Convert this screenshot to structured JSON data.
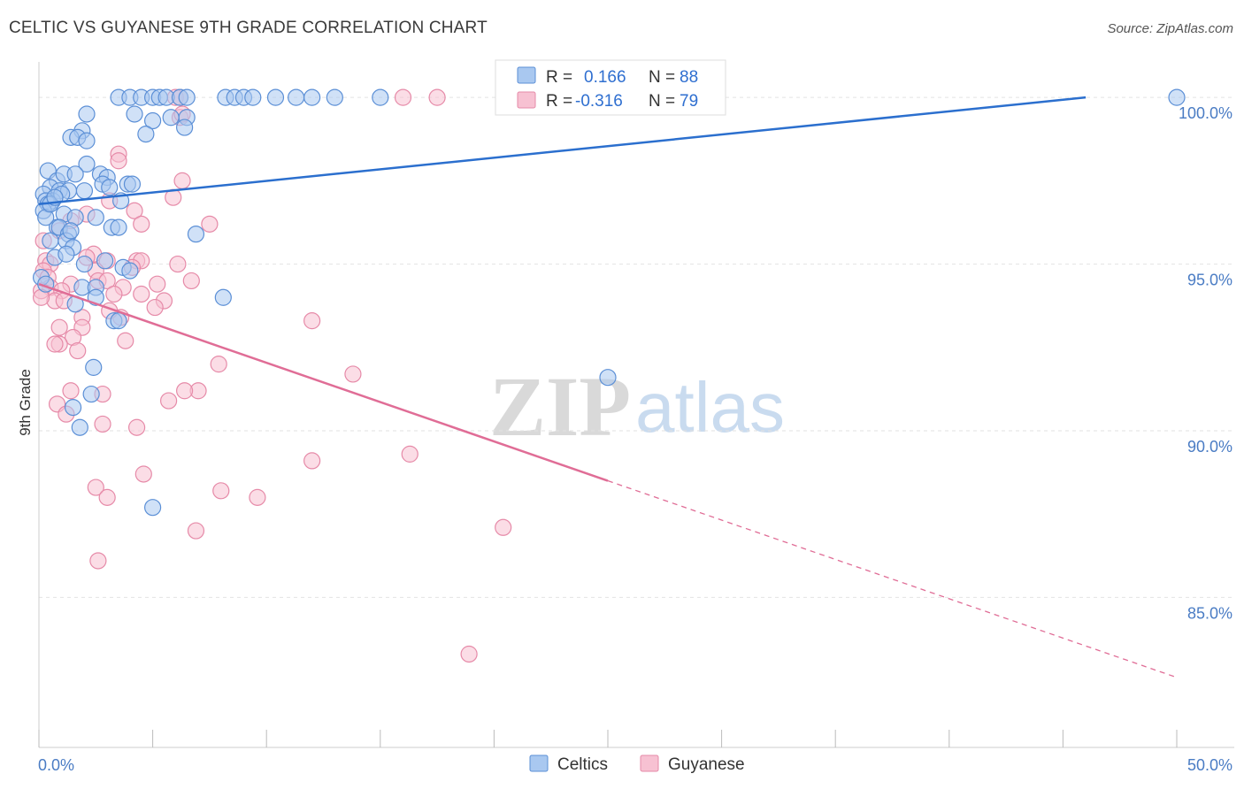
{
  "title": "CELTIC VS GUYANESE 9TH GRADE CORRELATION CHART",
  "source": "Source: ZipAtlas.com",
  "watermark": {
    "zip": "ZIP",
    "atlas": "atlas"
  },
  "legend": {
    "celtic": {
      "r_label": "R =",
      "r_value": "0.166",
      "n_label": "N =",
      "n_value": "88"
    },
    "guyanese": {
      "r_label": "R =",
      "r_value": "-0.316",
      "n_label": "N =",
      "n_value": "79"
    }
  },
  "colors": {
    "celtic_fill": "#a9c8f0",
    "celtic_stroke": "#5b8fd6",
    "celtic_line": "#2b6fce",
    "guyanese_fill": "#f7c1d2",
    "guyanese_stroke": "#e68aa8",
    "guyanese_line": "#e06d96",
    "grid": "#e2e2e2",
    "tick_text": "#4a7cc4"
  },
  "chart_data": {
    "type": "scatter",
    "title": "CELTIC VS GUYANESE 9TH GRADE CORRELATION CHART",
    "xlabel": "",
    "ylabel": "9th Grade",
    "xlim": [
      0,
      50
    ],
    "ylim": [
      80.5,
      100.8
    ],
    "x_tick_labels": [
      "0.0%",
      "50.0%"
    ],
    "y_ticks": [
      85,
      90,
      95,
      100
    ],
    "y_tick_labels": [
      "85.0%",
      "90.0%",
      "95.0%",
      "100.0%"
    ],
    "series": [
      {
        "name": "Celtics",
        "r": 0.166,
        "n": 88,
        "trend": {
          "x": [
            0,
            46
          ],
          "y": [
            96.8,
            100.0
          ],
          "dashed_to_x": null
        },
        "points": [
          [
            3.5,
            100
          ],
          [
            4.0,
            100
          ],
          [
            4.5,
            100
          ],
          [
            5.0,
            100
          ],
          [
            5.3,
            100
          ],
          [
            5.6,
            100
          ],
          [
            6.2,
            100
          ],
          [
            6.5,
            100
          ],
          [
            8.2,
            100
          ],
          [
            8.6,
            100
          ],
          [
            9.0,
            100
          ],
          [
            9.4,
            100
          ],
          [
            10.4,
            100
          ],
          [
            11.3,
            100
          ],
          [
            12.0,
            100
          ],
          [
            13.0,
            100
          ],
          [
            15.0,
            100
          ],
          [
            50.0,
            100
          ],
          [
            2.1,
            99.5
          ],
          [
            4.2,
            99.5
          ],
          [
            5.8,
            99.4
          ],
          [
            6.5,
            99.4
          ],
          [
            6.4,
            99.1
          ],
          [
            5.0,
            99.3
          ],
          [
            1.9,
            99.0
          ],
          [
            1.4,
            98.8
          ],
          [
            1.7,
            98.8
          ],
          [
            2.1,
            98.7
          ],
          [
            2.1,
            98.0
          ],
          [
            0.4,
            97.8
          ],
          [
            0.8,
            97.5
          ],
          [
            1.1,
            97.7
          ],
          [
            1.6,
            97.7
          ],
          [
            2.7,
            97.7
          ],
          [
            3.0,
            97.6
          ],
          [
            2.8,
            97.4
          ],
          [
            3.1,
            97.3
          ],
          [
            3.9,
            97.4
          ],
          [
            4.1,
            97.4
          ],
          [
            0.5,
            97.3
          ],
          [
            2.0,
            97.2
          ],
          [
            0.2,
            97.1
          ],
          [
            0.9,
            97.2
          ],
          [
            1.3,
            97.2
          ],
          [
            0.6,
            96.9
          ],
          [
            0.3,
            96.9
          ],
          [
            0.4,
            96.8
          ],
          [
            0.2,
            96.6
          ],
          [
            1.1,
            96.5
          ],
          [
            2.5,
            96.4
          ],
          [
            1.6,
            96.4
          ],
          [
            0.8,
            96.1
          ],
          [
            0.9,
            96.1
          ],
          [
            3.2,
            96.1
          ],
          [
            3.5,
            96.1
          ],
          [
            6.9,
            95.9
          ],
          [
            1.3,
            95.9
          ],
          [
            1.2,
            95.7
          ],
          [
            0.5,
            95.7
          ],
          [
            1.5,
            95.5
          ],
          [
            0.7,
            95.2
          ],
          [
            1.2,
            95.3
          ],
          [
            2.0,
            95.0
          ],
          [
            3.7,
            94.9
          ],
          [
            4.0,
            94.8
          ],
          [
            0.1,
            94.6
          ],
          [
            0.3,
            94.4
          ],
          [
            1.9,
            94.3
          ],
          [
            2.5,
            94.3
          ],
          [
            8.1,
            94.0
          ],
          [
            2.5,
            94.0
          ],
          [
            1.6,
            93.8
          ],
          [
            3.3,
            93.3
          ],
          [
            3.5,
            93.3
          ],
          [
            2.4,
            91.9
          ],
          [
            2.3,
            91.1
          ],
          [
            1.5,
            90.7
          ],
          [
            1.8,
            90.1
          ],
          [
            25.0,
            91.6
          ],
          [
            5.0,
            87.7
          ],
          [
            0.3,
            96.4
          ],
          [
            0.5,
            96.8
          ],
          [
            1.0,
            97.1
          ],
          [
            3.6,
            96.9
          ],
          [
            2.9,
            95.1
          ],
          [
            1.4,
            96.0
          ],
          [
            0.7,
            97.0
          ],
          [
            4.7,
            98.9
          ]
        ]
      },
      {
        "name": "Guyanese",
        "r": -0.316,
        "n": 79,
        "trend": {
          "x": [
            0,
            25.0
          ],
          "y": [
            94.4,
            88.5
          ],
          "dashed_to_x": 50
        },
        "points": [
          [
            6.0,
            100
          ],
          [
            6.2,
            100
          ],
          [
            16.0,
            100
          ],
          [
            17.5,
            100
          ],
          [
            6.2,
            99.4
          ],
          [
            6.3,
            99.5
          ],
          [
            3.5,
            98.3
          ],
          [
            3.5,
            98.1
          ],
          [
            6.3,
            97.5
          ],
          [
            5.9,
            97.0
          ],
          [
            3.1,
            96.9
          ],
          [
            4.2,
            96.6
          ],
          [
            2.1,
            96.5
          ],
          [
            1.4,
            96.3
          ],
          [
            7.5,
            96.2
          ],
          [
            4.5,
            96.2
          ],
          [
            0.9,
            96.0
          ],
          [
            0.2,
            95.7
          ],
          [
            2.4,
            95.3
          ],
          [
            2.1,
            95.2
          ],
          [
            3.0,
            95.1
          ],
          [
            4.3,
            95.1
          ],
          [
            4.5,
            95.1
          ],
          [
            0.3,
            95.1
          ],
          [
            0.5,
            95.0
          ],
          [
            6.1,
            95.0
          ],
          [
            0.2,
            94.8
          ],
          [
            2.5,
            94.8
          ],
          [
            4.1,
            94.9
          ],
          [
            0.4,
            94.6
          ],
          [
            2.6,
            94.5
          ],
          [
            3.0,
            94.5
          ],
          [
            1.4,
            94.4
          ],
          [
            6.7,
            94.5
          ],
          [
            5.2,
            94.4
          ],
          [
            0.5,
            94.3
          ],
          [
            3.7,
            94.3
          ],
          [
            4.5,
            94.1
          ],
          [
            0.1,
            94.2
          ],
          [
            1.0,
            94.2
          ],
          [
            3.3,
            94.1
          ],
          [
            0.7,
            93.9
          ],
          [
            5.5,
            93.9
          ],
          [
            5.1,
            93.7
          ],
          [
            3.6,
            93.4
          ],
          [
            1.9,
            93.4
          ],
          [
            12.0,
            93.3
          ],
          [
            1.9,
            93.1
          ],
          [
            0.9,
            93.1
          ],
          [
            1.5,
            92.8
          ],
          [
            3.8,
            92.7
          ],
          [
            0.9,
            92.6
          ],
          [
            0.7,
            92.6
          ],
          [
            1.7,
            92.4
          ],
          [
            7.9,
            92.0
          ],
          [
            13.8,
            91.7
          ],
          [
            7.0,
            91.2
          ],
          [
            1.4,
            91.2
          ],
          [
            2.8,
            91.1
          ],
          [
            6.4,
            91.2
          ],
          [
            0.8,
            90.8
          ],
          [
            5.7,
            90.9
          ],
          [
            1.2,
            90.5
          ],
          [
            2.8,
            90.2
          ],
          [
            4.3,
            90.1
          ],
          [
            12.0,
            89.1
          ],
          [
            16.3,
            89.3
          ],
          [
            4.6,
            88.7
          ],
          [
            2.5,
            88.3
          ],
          [
            3.0,
            88.0
          ],
          [
            8.0,
            88.2
          ],
          [
            9.6,
            88.0
          ],
          [
            6.9,
            87.0
          ],
          [
            20.4,
            87.1
          ],
          [
            2.6,
            86.1
          ],
          [
            18.9,
            83.3
          ],
          [
            0.1,
            94.0
          ],
          [
            1.1,
            93.9
          ],
          [
            3.1,
            93.6
          ]
        ]
      }
    ]
  },
  "bottom_legend": {
    "celtics": "Celtics",
    "guyanese": "Guyanese"
  }
}
